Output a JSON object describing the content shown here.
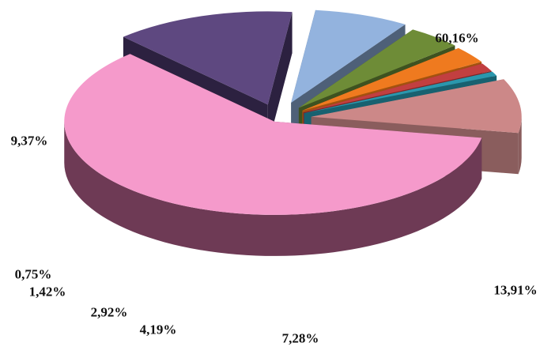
{
  "chart_data": {
    "type": "pie",
    "style": "3d-exploded",
    "title": "",
    "slices": [
      {
        "value": 60.16,
        "label": "60,16%",
        "color": "#f59acb",
        "side_color": "#6e3a55"
      },
      {
        "value": 13.91,
        "label": "13,91%",
        "color": "#5e4880",
        "side_color": "#2c2140"
      },
      {
        "value": 7.28,
        "label": "7,28%",
        "color": "#93b3de",
        "side_color": "#4e6078"
      },
      {
        "value": 4.19,
        "label": "4,19%",
        "color": "#6e8c37",
        "side_color": "#3e5220"
      },
      {
        "value": 2.92,
        "label": "2,92%",
        "color": "#ef7a1f",
        "side_color": "#a3520f"
      },
      {
        "value": 1.42,
        "label": "1,42%",
        "color": "#c23f40",
        "side_color": "#7b2526"
      },
      {
        "value": 0.75,
        "label": "0,75%",
        "color": "#2b97ad",
        "side_color": "#186170"
      },
      {
        "value": 9.37,
        "label": "9,37%",
        "color": "#cc8888",
        "side_color": "#8a5d5d"
      }
    ]
  }
}
